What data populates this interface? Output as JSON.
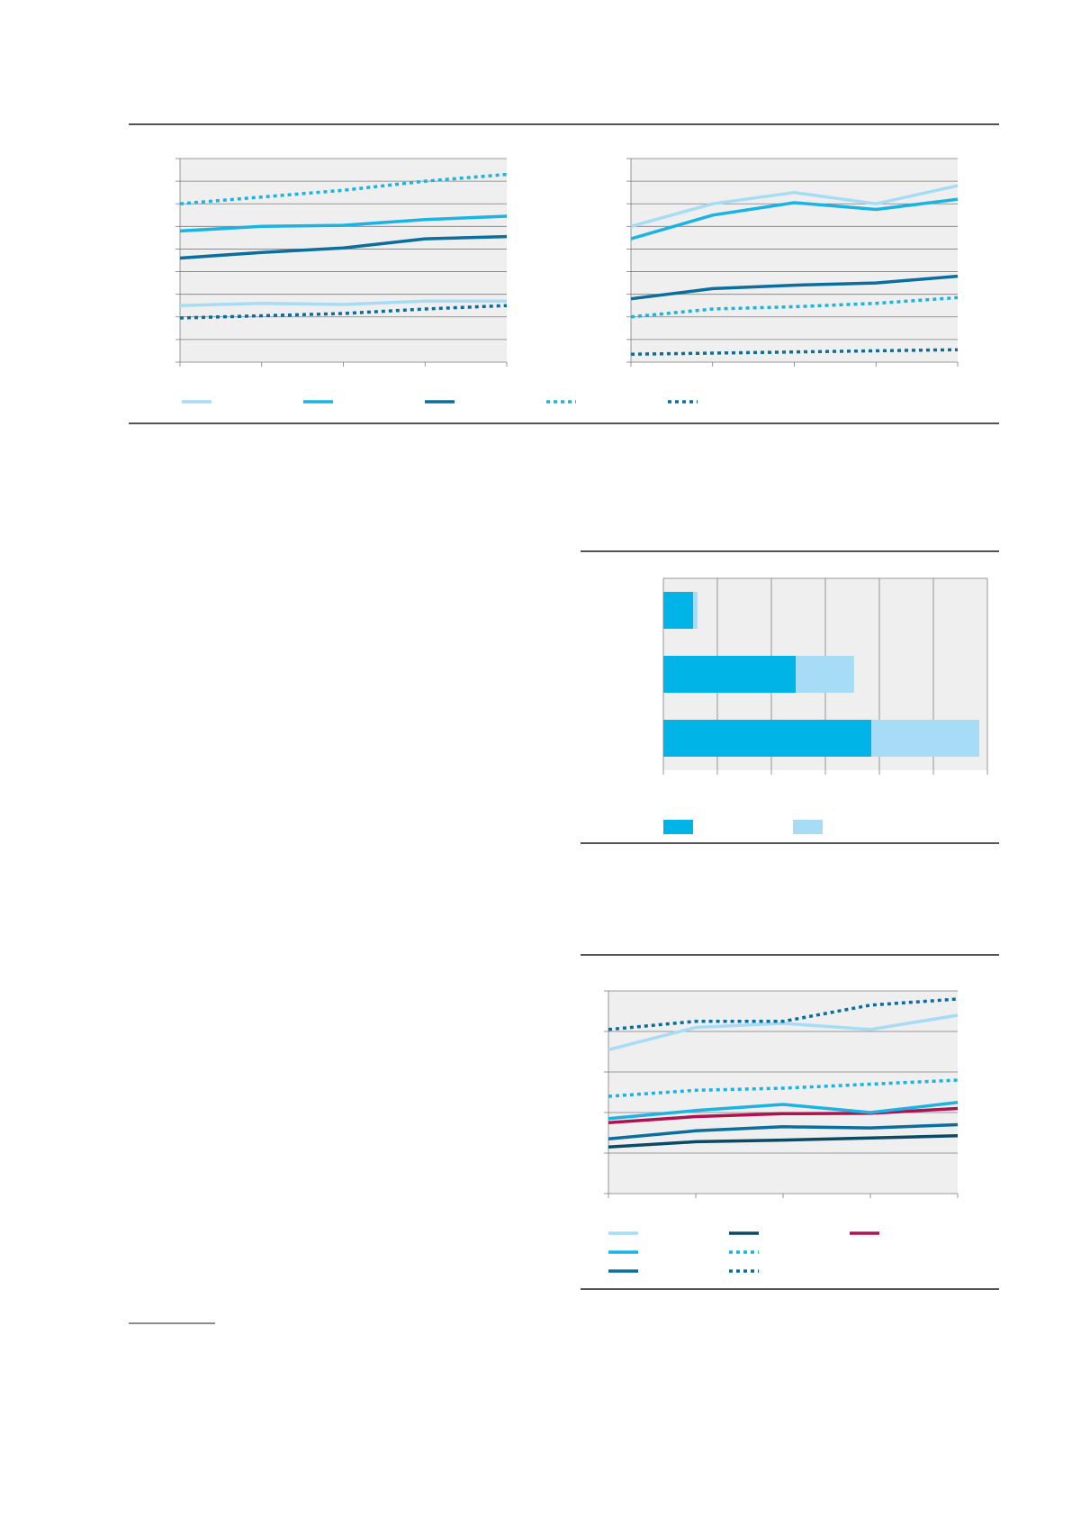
{
  "colors": {
    "light_blue": "#a6dcf6",
    "cyan": "#19b4e3",
    "dark_blue": "#0a6e9e",
    "navy": "#0a4a66",
    "crimson": "#b0124f",
    "bar_blue": "#00b4e8",
    "bar_light": "#a6dcf6",
    "plot_bg": "#efefef",
    "grid": "#7d7d7d",
    "rule": "#1a1a1a"
  },
  "chart_data": [
    {
      "type": "line",
      "x": [
        0,
        1,
        2,
        3,
        4
      ],
      "ylim": [
        0,
        9
      ],
      "grid": true,
      "legend": "bottom",
      "series": [
        {
          "color": "light_blue",
          "style": "solid",
          "values": [
            2.5,
            2.6,
            2.55,
            2.7,
            2.7
          ]
        },
        {
          "color": "cyan",
          "style": "solid",
          "values": [
            5.8,
            6.0,
            6.05,
            6.3,
            6.45
          ]
        },
        {
          "color": "dark_blue",
          "style": "solid",
          "values": [
            4.6,
            4.85,
            5.05,
            5.45,
            5.55
          ]
        },
        {
          "color": "cyan",
          "style": "dotted",
          "values": [
            7.0,
            7.3,
            7.6,
            8.0,
            8.3
          ]
        },
        {
          "color": "dark_blue",
          "style": "dotted",
          "values": [
            1.95,
            2.05,
            2.15,
            2.35,
            2.5
          ]
        }
      ]
    },
    {
      "type": "line",
      "x": [
        0,
        1,
        2,
        3,
        4
      ],
      "ylim": [
        0,
        9
      ],
      "grid": true,
      "legend": "none",
      "series": [
        {
          "color": "light_blue",
          "style": "solid",
          "values": [
            6.0,
            7.0,
            7.5,
            7.0,
            7.8
          ]
        },
        {
          "color": "cyan",
          "style": "solid",
          "values": [
            5.45,
            6.5,
            7.05,
            6.75,
            7.2
          ]
        },
        {
          "color": "dark_blue",
          "style": "solid",
          "values": [
            2.8,
            3.25,
            3.4,
            3.5,
            3.8
          ]
        },
        {
          "color": "cyan",
          "style": "dotted",
          "values": [
            2.0,
            2.35,
            2.45,
            2.6,
            2.85
          ]
        },
        {
          "color": "dark_blue",
          "style": "dotted",
          "values": [
            0.35,
            0.4,
            0.45,
            0.5,
            0.55
          ]
        }
      ]
    },
    {
      "type": "bar",
      "orientation": "horizontal",
      "stacked": true,
      "categories": [
        "",
        "",
        ""
      ],
      "xlim": [
        0,
        6
      ],
      "grid": true,
      "legend": "bottom",
      "series": [
        {
          "color": "bar_blue",
          "values": [
            0.55,
            2.45,
            3.85
          ]
        },
        {
          "color": "bar_light",
          "values": [
            0.08,
            1.08,
            2.0
          ]
        }
      ]
    },
    {
      "type": "line",
      "x": [
        0,
        1,
        2,
        3,
        4
      ],
      "ylim": [
        0,
        5
      ],
      "grid": true,
      "legend": "bottom",
      "series": [
        {
          "color": "light_blue",
          "style": "solid",
          "values": [
            3.55,
            4.1,
            4.2,
            4.05,
            4.4
          ]
        },
        {
          "color": "navy",
          "style": "solid",
          "values": [
            1.15,
            1.28,
            1.32,
            1.37,
            1.43
          ]
        },
        {
          "color": "crimson",
          "style": "solid",
          "values": [
            1.75,
            1.9,
            1.97,
            1.98,
            2.1
          ]
        },
        {
          "color": "cyan",
          "style": "solid",
          "values": [
            1.85,
            2.05,
            2.2,
            2.0,
            2.25
          ]
        },
        {
          "color": "cyan",
          "style": "dotted",
          "values": [
            2.4,
            2.55,
            2.6,
            2.7,
            2.8
          ]
        },
        {
          "color": "dark_blue",
          "style": "solid",
          "values": [
            1.35,
            1.55,
            1.65,
            1.62,
            1.7
          ]
        },
        {
          "color": "dark_blue",
          "style": "dotted",
          "values": [
            4.05,
            4.25,
            4.25,
            4.65,
            4.8
          ]
        }
      ]
    }
  ]
}
